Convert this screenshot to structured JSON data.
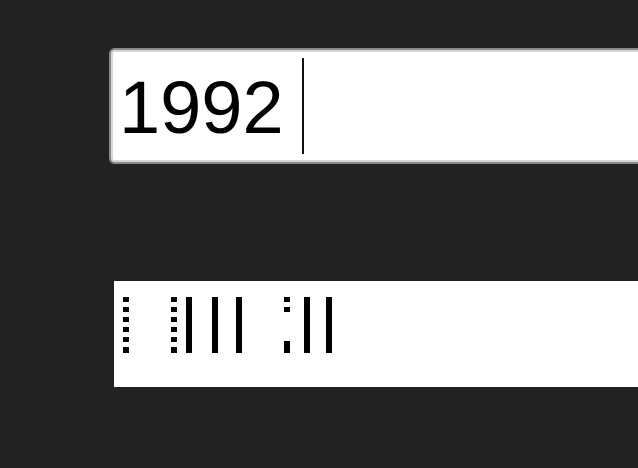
{
  "year_input": {
    "value": "1992"
  },
  "barcode": {
    "icon": "postnet-barcode"
  },
  "colors": {
    "background": "#222222",
    "field": "#ffffff",
    "ink": "#000000"
  }
}
